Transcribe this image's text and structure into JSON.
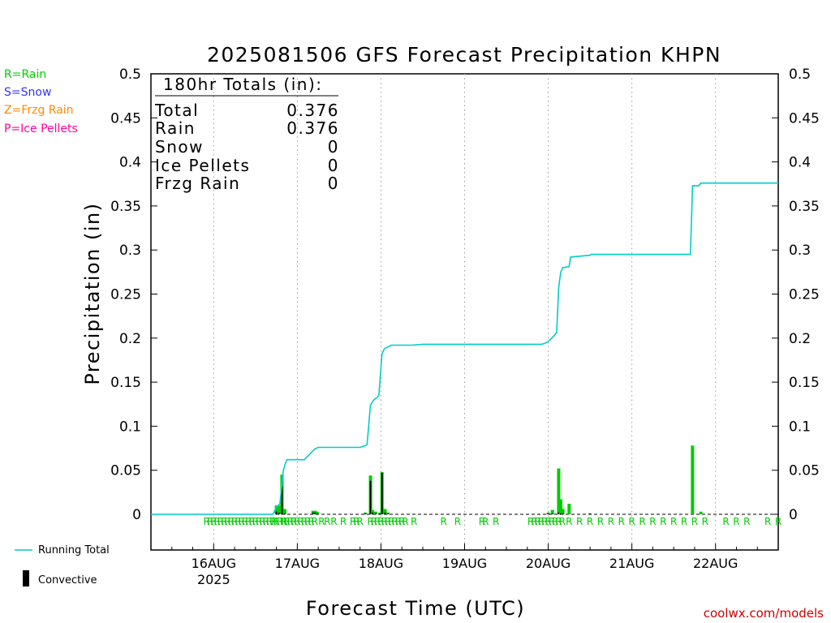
{
  "title": "2025081506 GFS Forecast Precipitation KHPN",
  "legend_types": [
    {
      "label": "R=Rain",
      "color": "#00cc00"
    },
    {
      "label": "S=Snow",
      "color": "#3333ff"
    },
    {
      "label": "Z=Frzg Rain",
      "color": "#ff8800"
    },
    {
      "label": "P=Ice Pellets",
      "color": "#ff0099"
    }
  ],
  "totals": {
    "header": "180hr Totals (in):",
    "rows": [
      {
        "label": "Total",
        "value": "0.376"
      },
      {
        "label": "Rain",
        "value": "0.376"
      },
      {
        "label": "Snow",
        "value": "0"
      },
      {
        "label": "Ice Pellets",
        "value": "0"
      },
      {
        "label": "Frzg Rain",
        "value": "0"
      }
    ]
  },
  "legend_bottom": {
    "running_total": "Running Total",
    "convective": "Convective"
  },
  "watermark": "coolwx.com/models",
  "colors": {
    "running_total": "#00cccc",
    "rain_bar": "#00cc00",
    "convective": "#000000",
    "rain_letter": "#00cc00"
  },
  "chart_data": {
    "type": "bar",
    "ylabel": "Precipitation (in)",
    "xlabel": "Forecast Time (UTC)",
    "ylim": [
      -0.04,
      0.5
    ],
    "y_ticks": [
      "0",
      "0.05",
      "0.1",
      "0.15",
      "0.2",
      "0.25",
      "0.3",
      "0.35",
      "0.4",
      "0.45",
      "0.5"
    ],
    "x_ticks": [
      {
        "hour": 18,
        "label": "16AUG",
        "sub": "2025"
      },
      {
        "hour": 42,
        "label": "17AUG"
      },
      {
        "hour": 66,
        "label": "18AUG"
      },
      {
        "hour": 90,
        "label": "19AUG"
      },
      {
        "hour": 114,
        "label": "20AUG"
      },
      {
        "hour": 138,
        "label": "21AUG"
      },
      {
        "hour": 162,
        "label": "22AUG"
      }
    ],
    "x_range_hours": [
      0,
      180
    ],
    "grid": "vertical dotted",
    "bars": [
      {
        "h": 36.0,
        "v": 0.01,
        "c": 0.003
      },
      {
        "h": 36.8,
        "v": 0.01,
        "c": 0.002
      },
      {
        "h": 37.6,
        "v": 0.045,
        "c": 0.032
      },
      {
        "h": 38.4,
        "v": 0.006,
        "c": 0.001
      },
      {
        "h": 46.5,
        "v": 0.004,
        "c": 0.002
      },
      {
        "h": 47.1,
        "v": 0.004,
        "c": 0.002
      },
      {
        "h": 47.7,
        "v": 0.003,
        "c": 0.001
      },
      {
        "h": 61.5,
        "v": 0.002,
        "c": 0.001
      },
      {
        "h": 63.0,
        "v": 0.044,
        "c": 0.038
      },
      {
        "h": 63.6,
        "v": 0.005,
        "c": 0.002
      },
      {
        "h": 64.5,
        "v": 0.003,
        "c": 0.001
      },
      {
        "h": 65.7,
        "v": 0.002,
        "c": 0.001
      },
      {
        "h": 66.3,
        "v": 0.048,
        "c": 0.047
      },
      {
        "h": 67.2,
        "v": 0.006,
        "c": 0.002
      },
      {
        "h": 68.0,
        "v": 0.002,
        "c": 0.001
      },
      {
        "h": 114.0,
        "v": 0.002,
        "c": 0.001
      },
      {
        "h": 115.2,
        "v": 0.005,
        "c": 0.001
      },
      {
        "h": 117.0,
        "v": 0.052,
        "c": 0.002
      },
      {
        "h": 117.6,
        "v": 0.017,
        "c": 0.001
      },
      {
        "h": 118.2,
        "v": 0.006,
        "c": 0.001
      },
      {
        "h": 120.0,
        "v": 0.012,
        "c": 0.0
      },
      {
        "h": 126.0,
        "v": 0.001,
        "c": 0.001
      },
      {
        "h": 155.4,
        "v": 0.078,
        "c": 0.0
      },
      {
        "h": 157.8,
        "v": 0.003,
        "c": 0.0
      }
    ],
    "running_total": [
      [
        0,
        0
      ],
      [
        35.0,
        0
      ],
      [
        36.0,
        0.008
      ],
      [
        37.0,
        0.012
      ],
      [
        38.0,
        0.05
      ],
      [
        38.6,
        0.058
      ],
      [
        39.0,
        0.062
      ],
      [
        41.0,
        0.062
      ],
      [
        44.0,
        0.062
      ],
      [
        45.0,
        0.066
      ],
      [
        46.0,
        0.07
      ],
      [
        47.0,
        0.074
      ],
      [
        48.0,
        0.076
      ],
      [
        58.0,
        0.076
      ],
      [
        60.0,
        0.076
      ],
      [
        61.5,
        0.078
      ],
      [
        62.0,
        0.079
      ],
      [
        63.0,
        0.124
      ],
      [
        64.0,
        0.13
      ],
      [
        65.0,
        0.133
      ],
      [
        65.4,
        0.135
      ],
      [
        66.3,
        0.182
      ],
      [
        67.0,
        0.188
      ],
      [
        68.0,
        0.19
      ],
      [
        69.0,
        0.192
      ],
      [
        75.0,
        0.192
      ],
      [
        78.0,
        0.193
      ],
      [
        90.0,
        0.193
      ],
      [
        110.0,
        0.193
      ],
      [
        112.0,
        0.193
      ],
      [
        113.0,
        0.194
      ],
      [
        114.0,
        0.196
      ],
      [
        115.0,
        0.2
      ],
      [
        116.4,
        0.206
      ],
      [
        117.0,
        0.258
      ],
      [
        117.6,
        0.275
      ],
      [
        118.2,
        0.28
      ],
      [
        120.0,
        0.281
      ],
      [
        120.4,
        0.292
      ],
      [
        123.0,
        0.293
      ],
      [
        126.0,
        0.294
      ],
      [
        126.3,
        0.295
      ],
      [
        154.8,
        0.295
      ],
      [
        155.4,
        0.373
      ],
      [
        157.2,
        0.373
      ],
      [
        157.8,
        0.376
      ],
      [
        180.0,
        0.376
      ]
    ],
    "rain_letters_dense": [
      [
        16,
        33
      ],
      [
        34,
        44
      ],
      [
        58,
        60
      ],
      [
        63,
        72
      ],
      [
        109,
        118
      ]
    ],
    "rain_letters_single": [
      35.5,
      38.3,
      40.0,
      41.0,
      45.0,
      46.0,
      47.0,
      49.0,
      50.6,
      52.5,
      55.2,
      73.0,
      75.5,
      84.0,
      88.0,
      95.0,
      96.0,
      99.0,
      120.0,
      123.0,
      126.0,
      129.0,
      132.0,
      135.0,
      138.0,
      141.0,
      144.0,
      147.0,
      150.0,
      153.0,
      156.0,
      159.0,
      165.0,
      168.0,
      171.0,
      177.0,
      180.0
    ]
  }
}
